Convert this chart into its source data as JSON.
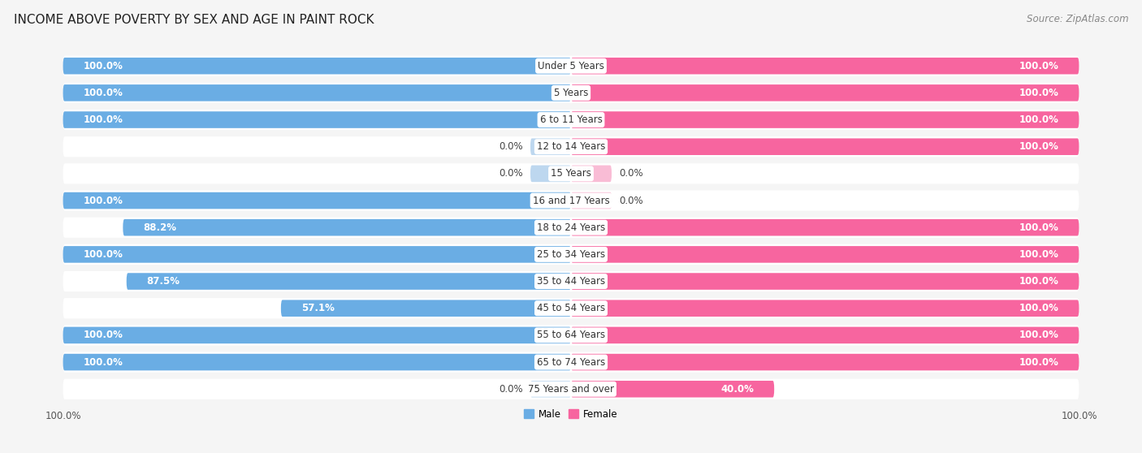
{
  "title": "INCOME ABOVE POVERTY BY SEX AND AGE IN PAINT ROCK",
  "source": "Source: ZipAtlas.com",
  "categories": [
    "Under 5 Years",
    "5 Years",
    "6 to 11 Years",
    "12 to 14 Years",
    "15 Years",
    "16 and 17 Years",
    "18 to 24 Years",
    "25 to 34 Years",
    "35 to 44 Years",
    "45 to 54 Years",
    "55 to 64 Years",
    "65 to 74 Years",
    "75 Years and over"
  ],
  "male": [
    100.0,
    100.0,
    100.0,
    0.0,
    0.0,
    100.0,
    88.2,
    100.0,
    87.5,
    57.1,
    100.0,
    100.0,
    0.0
  ],
  "female": [
    100.0,
    100.0,
    100.0,
    100.0,
    0.0,
    0.0,
    100.0,
    100.0,
    100.0,
    100.0,
    100.0,
    100.0,
    40.0
  ],
  "male_color": "#6aade4",
  "female_color": "#f7659f",
  "male_color_light": "#bdd7ef",
  "female_color_light": "#f9bcd5",
  "row_bg": "#e8e8e8",
  "bar_bg": "#f5f5f5",
  "bg_color": "#f5f5f5",
  "title_fontsize": 11,
  "source_fontsize": 8.5,
  "cat_label_fontsize": 8.5,
  "val_label_fontsize": 8.5,
  "legend_male": "Male",
  "legend_female": "Female"
}
